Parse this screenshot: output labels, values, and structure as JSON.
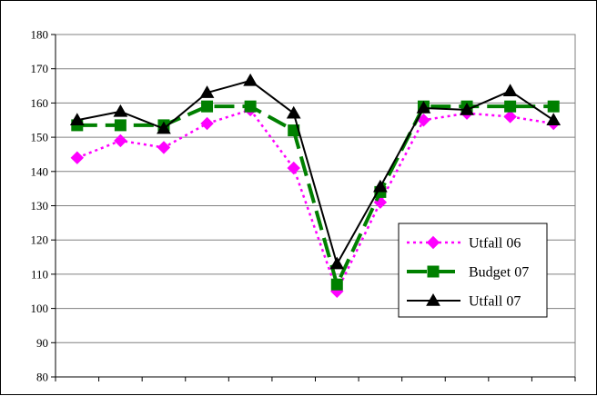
{
  "chart_data": {
    "type": "line",
    "title": "",
    "xlabel": "",
    "ylabel": "",
    "ylim": [
      80,
      180
    ],
    "yticks": [
      80,
      90,
      100,
      110,
      120,
      130,
      140,
      150,
      160,
      170,
      180
    ],
    "ytick_labels": [
      "80",
      "90",
      "100",
      "110",
      "120",
      "130",
      "140",
      "150",
      "160",
      "170",
      "180"
    ],
    "x": [
      1,
      2,
      3,
      4,
      5,
      6,
      7,
      8,
      9,
      10,
      11,
      12
    ],
    "grid": "horizontal",
    "legend": "bottom-right",
    "series": [
      {
        "name": "Utfall 06",
        "color": "#ff00ff",
        "marker": "diamond",
        "line_style": "dotted",
        "values": [
          144,
          149,
          147,
          154,
          158,
          141,
          105,
          131,
          155,
          157,
          156,
          154
        ]
      },
      {
        "name": "Budget 07",
        "color": "#008000",
        "marker": "square",
        "line_style": "dashed",
        "values": [
          153.5,
          153.5,
          153.5,
          159,
          159,
          152,
          107,
          134,
          159,
          159,
          159,
          159
        ]
      },
      {
        "name": "Utfall 07",
        "color": "#000000",
        "marker": "triangle",
        "line_style": "solid",
        "values": [
          155,
          157.5,
          152.5,
          163,
          166.5,
          157,
          113,
          135.5,
          158.5,
          158,
          163.5,
          155
        ]
      }
    ]
  }
}
